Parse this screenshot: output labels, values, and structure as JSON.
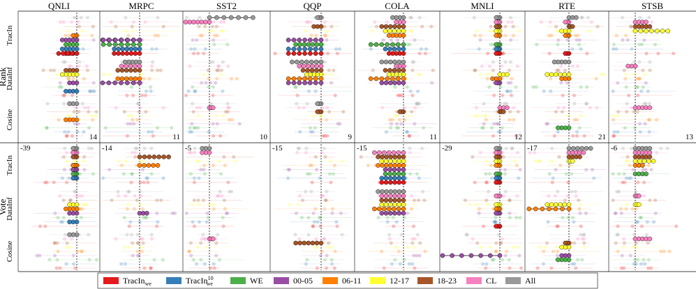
{
  "chart_data": {
    "type": "scatter",
    "tasks": [
      "QNLI",
      "MRPC",
      "SST2",
      "QQP",
      "COLA",
      "MNLI",
      "RTE",
      "STSB"
    ],
    "row_groups": [
      {
        "name": "Rank",
        "methods": [
          "TracIn",
          "DataInf",
          "Cosine"
        ]
      },
      {
        "name": "Vote",
        "methods": [
          "TracIn",
          "DataInf",
          "Cosine"
        ]
      }
    ],
    "rank_corner_values": [
      "14",
      "11",
      "10",
      "9",
      "11",
      "12",
      "21",
      "13"
    ],
    "vote_corner_values": [
      "-39",
      "-14",
      "-5",
      "-15",
      "-15",
      "-29",
      "-17",
      "-6"
    ],
    "legend": [
      {
        "label": "TracIn",
        "sub": "we",
        "sup": "",
        "color": "#e41a1c"
      },
      {
        "label": "TracIn",
        "sub": "we",
        "sup": "10",
        "color": "#377eb8"
      },
      {
        "label": "WE",
        "sub": "",
        "sup": "",
        "color": "#4daf4a"
      },
      {
        "label": "00-05",
        "sub": "",
        "sup": "",
        "color": "#984ea3"
      },
      {
        "label": "06-11",
        "sub": "",
        "sup": "",
        "color": "#ff7f00"
      },
      {
        "label": "12-17",
        "sub": "",
        "sup": "",
        "color": "#ffff33"
      },
      {
        "label": "18-23",
        "sub": "",
        "sup": "",
        "color": "#a65628"
      },
      {
        "label": "CL",
        "sub": "",
        "sup": "",
        "color": "#f781bf"
      },
      {
        "label": "All",
        "sub": "",
        "sup": "",
        "color": "#999999"
      }
    ],
    "series_highlight": {
      "QNLI": {
        "Rank": {
          "TracIn": [
            [
              3,
              -4
            ],
            [
              3,
              -2
            ],
            [
              2,
              -3
            ],
            [
              1,
              -4
            ],
            [
              0,
              -3
            ],
            [
              0,
              -5
            ],
            [
              4,
              -1
            ]
          ],
          "DataInf": [
            [
              1,
              -3
            ],
            [
              3,
              -2
            ],
            [
              6,
              -3
            ],
            [
              5,
              -4
            ]
          ],
          "Cosine": [
            [
              8,
              -2
            ],
            [
              4,
              -3
            ]
          ]
        },
        "Vote": {
          "TracIn": [
            [
              4,
              -1
            ],
            [
              7,
              -1
            ],
            [
              8,
              -1
            ],
            [
              6,
              -1
            ],
            [
              1,
              -1
            ],
            [
              4,
              -1
            ],
            [
              3,
              -1
            ],
            [
              2,
              -1
            ]
          ],
          "DataInf": [
            [
              1,
              -2
            ],
            [
              4,
              -3
            ],
            [
              5,
              -2
            ],
            [
              3,
              -2
            ]
          ],
          "Cosine": [
            [
              8,
              -2
            ]
          ]
        }
      },
      "MRPC": {
        "Rank": {
          "TracIn": [
            [
              3,
              -11
            ],
            [
              3,
              -10
            ],
            [
              2,
              -10
            ],
            [
              1,
              -7
            ],
            [
              0,
              -7
            ]
          ],
          "DataInf": [
            [
              8,
              -4
            ],
            [
              7,
              -5
            ],
            [
              6,
              -6
            ],
            [
              4,
              -6
            ],
            [
              3,
              -11
            ]
          ],
          "Cosine": []
        },
        "Vote": {
          "TracIn": [
            [
              4,
              5
            ],
            [
              6,
              8
            ]
          ],
          "DataInf": [
            [
              3,
              2
            ]
          ],
          "Cosine": []
        }
      },
      "SST2": {
        "Rank": {
          "TracIn": [
            [
              7,
              -10
            ],
            [
              8,
              12
            ]
          ],
          "DataInf": [],
          "Cosine": [
            [
              7,
              1
            ]
          ]
        },
        "Vote": {
          "TracIn": [
            [
              8,
              -2
            ],
            [
              7,
              -2
            ]
          ],
          "DataInf": [],
          "Cosine": [
            [
              7,
              1
            ]
          ]
        }
      },
      "QQP": {
        "Rank": {
          "TracIn": [
            [
              6,
              -2
            ],
            [
              8,
              -1
            ],
            [
              3,
              -9
            ],
            [
              2,
              -7
            ],
            [
              1,
              -9
            ],
            [
              0,
              -9
            ]
          ],
          "DataInf": [
            [
              8,
              -8
            ],
            [
              7,
              -6
            ],
            [
              6,
              -5
            ],
            [
              5,
              -4
            ],
            [
              4,
              -9
            ],
            [
              3,
              -9
            ]
          ],
          "Cosine": [
            [
              8,
              -1
            ],
            [
              6,
              -1
            ]
          ]
        },
        "Vote": {
          "TracIn": [],
          "DataInf": [],
          "Cosine": [
            [
              6,
              -7
            ]
          ]
        }
      },
      "COLA": {
        "Rank": {
          "TracIn": [
            [
              8,
              -3
            ],
            [
              7,
              -2
            ],
            [
              6,
              -6
            ],
            [
              5,
              -5
            ],
            [
              4,
              -4
            ],
            [
              2,
              -9
            ],
            [
              1,
              -5
            ],
            [
              0,
              -4
            ]
          ],
          "DataInf": [
            [
              8,
              -6
            ],
            [
              7,
              -2
            ],
            [
              6,
              -5
            ],
            [
              5,
              -4
            ],
            [
              4,
              -9
            ],
            [
              3,
              -6
            ]
          ],
          "Cosine": [
            [
              6,
              -1
            ]
          ]
        },
        "Vote": {
          "TracIn": [
            [
              7,
              -8
            ],
            [
              6,
              -7
            ],
            [
              5,
              -6
            ],
            [
              4,
              -7
            ],
            [
              3,
              -5
            ],
            [
              2,
              -5
            ],
            [
              1,
              -6
            ],
            [
              0,
              -6
            ]
          ],
          "DataInf": [
            [
              8,
              -7
            ],
            [
              7,
              -6
            ],
            [
              6,
              -6
            ],
            [
              5,
              -6
            ],
            [
              4,
              -8
            ],
            [
              3,
              -6
            ]
          ],
          "Cosine": []
        }
      },
      "MNLI": {
        "Rank": {
          "TracIn": [
            [
              8,
              -1
            ],
            [
              7,
              -1
            ],
            [
              6,
              -1
            ],
            [
              5,
              -1
            ],
            [
              4,
              -1
            ],
            [
              2,
              -1
            ],
            [
              1,
              -1
            ],
            [
              0,
              -1
            ]
          ],
          "DataInf": [
            [
              5,
              2
            ],
            [
              4,
              -2
            ],
            [
              3,
              -1
            ]
          ],
          "Cosine": [
            [
              7,
              2
            ],
            [
              6,
              1
            ]
          ]
        },
        "Vote": {
          "TracIn": [
            [
              8,
              -1
            ],
            [
              7,
              -1
            ],
            [
              6,
              -1
            ],
            [
              5,
              -1
            ],
            [
              4,
              -1
            ],
            [
              2,
              -1
            ],
            [
              1,
              -1
            ],
            [
              0,
              -1
            ]
          ],
          "DataInf": [
            [
              7,
              -1
            ],
            [
              5,
              -1
            ],
            [
              4,
              -1
            ],
            [
              3,
              -1
            ],
            [
              0,
              -1
            ]
          ],
          "Cosine": [
            [
              3,
              -24
            ]
          ]
        }
      },
      "RTE": {
        "Rank": {
          "TracIn": [
            [
              8,
              2
            ],
            [
              7,
              -1
            ],
            [
              6,
              1
            ],
            [
              5,
              -2
            ],
            [
              4,
              -1
            ],
            [
              0,
              -1
            ]
          ],
          "DataInf": [
            [
              8,
              -4
            ],
            [
              5,
              -6
            ],
            [
              4,
              -2
            ]
          ],
          "Cosine": [
            [
              2,
              -3
            ]
          ]
        },
        "Vote": {
          "TracIn": [
            [
              8,
              6
            ],
            [
              7,
              4
            ],
            [
              6,
              3
            ],
            [
              5,
              1
            ]
          ],
          "DataInf": [
            [
              5,
              -6
            ],
            [
              4,
              -11
            ]
          ],
          "Cosine": [
            [
              6,
              -1
            ],
            [
              5,
              -2
            ],
            [
              3,
              -2
            ],
            [
              2,
              -3
            ]
          ]
        }
      },
      "STSB": {
        "Rank": {
          "TracIn": [
            [
              7,
              3
            ],
            [
              6,
              4
            ],
            [
              5,
              9
            ]
          ],
          "DataInf": [
            [
              7,
              -2
            ]
          ],
          "Cosine": [
            [
              7,
              4
            ]
          ]
        },
        "Vote": {
          "TracIn": [
            [
              8,
              4
            ],
            [
              7,
              4
            ],
            [
              6,
              4
            ],
            [
              5,
              5
            ],
            [
              4,
              2
            ],
            [
              2,
              3
            ]
          ],
          "DataInf": [
            [
              5,
              1
            ],
            [
              7,
              1
            ]
          ],
          "Cosine": [
            [
              7,
              4
            ]
          ]
        }
      }
    },
    "grid": false,
    "legend_position": "bottom"
  }
}
